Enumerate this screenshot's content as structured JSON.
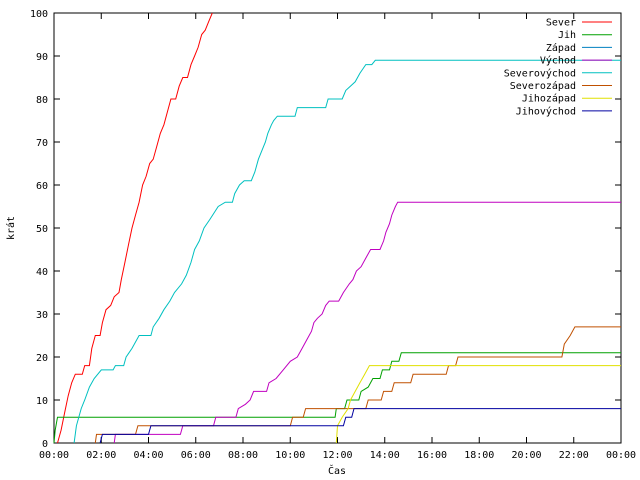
{
  "chart_data": {
    "type": "line",
    "title": "",
    "xlabel": "Čas",
    "ylabel": "krát",
    "xlim": [
      0,
      24
    ],
    "ylim": [
      0,
      100
    ],
    "legend_position": "top-right",
    "grid": false,
    "x_tick_labels": [
      "00:00",
      "02:00",
      "04:00",
      "06:00",
      "08:00",
      "10:00",
      "12:00",
      "14:00",
      "16:00",
      "18:00",
      "20:00",
      "22:00",
      "00:00"
    ],
    "y_tick_labels": [
      "0",
      "10",
      "20",
      "30",
      "40",
      "50",
      "60",
      "70",
      "80",
      "90",
      "100"
    ],
    "series": [
      {
        "name": "Sever",
        "color": "#ff0000",
        "points": [
          [
            0.15,
            0
          ],
          [
            0.3,
            3
          ],
          [
            0.45,
            7
          ],
          [
            0.6,
            11
          ],
          [
            0.75,
            14
          ],
          [
            0.9,
            16
          ],
          [
            1.2,
            16
          ],
          [
            1.3,
            18
          ],
          [
            1.5,
            18
          ],
          [
            1.6,
            22
          ],
          [
            1.75,
            25
          ],
          [
            1.95,
            25
          ],
          [
            2.05,
            28
          ],
          [
            2.2,
            31
          ],
          [
            2.4,
            32
          ],
          [
            2.55,
            34
          ],
          [
            2.75,
            35
          ],
          [
            2.85,
            38
          ],
          [
            3.0,
            42
          ],
          [
            3.15,
            46
          ],
          [
            3.3,
            50
          ],
          [
            3.45,
            53
          ],
          [
            3.6,
            56
          ],
          [
            3.75,
            60
          ],
          [
            3.9,
            62
          ],
          [
            4.05,
            65
          ],
          [
            4.2,
            66
          ],
          [
            4.35,
            69
          ],
          [
            4.5,
            72
          ],
          [
            4.65,
            74
          ],
          [
            4.8,
            77
          ],
          [
            4.95,
            80
          ],
          [
            5.15,
            80
          ],
          [
            5.3,
            83
          ],
          [
            5.45,
            85
          ],
          [
            5.65,
            85
          ],
          [
            5.8,
            88
          ],
          [
            5.95,
            90
          ],
          [
            6.1,
            92
          ],
          [
            6.25,
            95
          ],
          [
            6.4,
            96
          ],
          [
            6.55,
            98
          ],
          [
            6.7,
            100
          ]
        ]
      },
      {
        "name": "Jih",
        "color": "#00a000",
        "points": [
          [
            0,
            0
          ],
          [
            0.05,
            3
          ],
          [
            0.15,
            6
          ],
          [
            11.9,
            6
          ],
          [
            11.95,
            8
          ],
          [
            12.3,
            8
          ],
          [
            12.4,
            10
          ],
          [
            12.9,
            10
          ],
          [
            13.0,
            12
          ],
          [
            13.3,
            13
          ],
          [
            13.5,
            15
          ],
          [
            13.8,
            15
          ],
          [
            13.9,
            17
          ],
          [
            14.2,
            17
          ],
          [
            14.3,
            19
          ],
          [
            14.6,
            19
          ],
          [
            14.7,
            21
          ],
          [
            24,
            21
          ]
        ]
      },
      {
        "name": "Západ",
        "color": "#0080c0",
        "points": []
      },
      {
        "name": "Východ",
        "color": "#c000c0",
        "points": [
          [
            2.55,
            0
          ],
          [
            2.6,
            2
          ],
          [
            5.35,
            2
          ],
          [
            5.45,
            4
          ],
          [
            6.75,
            4
          ],
          [
            6.85,
            6
          ],
          [
            7.7,
            6
          ],
          [
            7.8,
            8
          ],
          [
            8.1,
            9
          ],
          [
            8.3,
            10
          ],
          [
            8.45,
            12
          ],
          [
            9.0,
            12
          ],
          [
            9.1,
            14
          ],
          [
            9.4,
            15
          ],
          [
            9.7,
            17
          ],
          [
            10.0,
            19
          ],
          [
            10.3,
            20
          ],
          [
            10.5,
            22
          ],
          [
            10.7,
            24
          ],
          [
            10.9,
            26
          ],
          [
            11.0,
            28
          ],
          [
            11.15,
            29
          ],
          [
            11.35,
            30
          ],
          [
            11.5,
            32
          ],
          [
            11.65,
            33
          ],
          [
            12.05,
            33
          ],
          [
            12.25,
            35
          ],
          [
            12.5,
            37
          ],
          [
            12.65,
            38
          ],
          [
            12.8,
            40
          ],
          [
            13.0,
            41
          ],
          [
            13.2,
            43
          ],
          [
            13.4,
            45
          ],
          [
            13.8,
            45
          ],
          [
            13.95,
            47
          ],
          [
            14.05,
            49
          ],
          [
            14.2,
            51
          ],
          [
            14.3,
            53
          ],
          [
            14.45,
            55
          ],
          [
            14.55,
            56
          ],
          [
            24,
            56
          ]
        ]
      },
      {
        "name": "Severovýchod",
        "color": "#00c0c0",
        "points": [
          [
            0.85,
            0
          ],
          [
            0.95,
            4
          ],
          [
            1.15,
            8
          ],
          [
            1.3,
            10
          ],
          [
            1.5,
            13
          ],
          [
            1.7,
            15
          ],
          [
            2.0,
            17
          ],
          [
            2.5,
            17
          ],
          [
            2.6,
            18
          ],
          [
            2.95,
            18
          ],
          [
            3.05,
            20
          ],
          [
            3.3,
            22
          ],
          [
            3.6,
            25
          ],
          [
            4.1,
            25
          ],
          [
            4.2,
            27
          ],
          [
            4.45,
            29
          ],
          [
            4.65,
            31
          ],
          [
            4.9,
            33
          ],
          [
            5.1,
            35
          ],
          [
            5.4,
            37
          ],
          [
            5.6,
            39
          ],
          [
            5.8,
            42
          ],
          [
            5.95,
            45
          ],
          [
            6.15,
            47
          ],
          [
            6.35,
            50
          ],
          [
            6.6,
            52
          ],
          [
            6.95,
            55
          ],
          [
            7.25,
            56
          ],
          [
            7.55,
            56
          ],
          [
            7.65,
            58
          ],
          [
            7.85,
            60
          ],
          [
            8.05,
            61
          ],
          [
            8.35,
            61
          ],
          [
            8.5,
            63
          ],
          [
            8.65,
            66
          ],
          [
            8.8,
            68
          ],
          [
            8.95,
            70
          ],
          [
            9.05,
            72
          ],
          [
            9.2,
            74
          ],
          [
            9.3,
            75
          ],
          [
            9.45,
            76
          ],
          [
            10.2,
            76
          ],
          [
            10.3,
            78
          ],
          [
            11.5,
            78
          ],
          [
            11.6,
            80
          ],
          [
            12.2,
            80
          ],
          [
            12.35,
            82
          ],
          [
            12.55,
            83
          ],
          [
            12.75,
            84
          ],
          [
            12.95,
            86
          ],
          [
            13.2,
            88
          ],
          [
            13.45,
            88
          ],
          [
            13.6,
            89
          ],
          [
            24,
            89
          ]
        ]
      },
      {
        "name": "Severozápad",
        "color": "#c05000",
        "points": [
          [
            1.75,
            0
          ],
          [
            1.8,
            2
          ],
          [
            3.45,
            2
          ],
          [
            3.55,
            4
          ],
          [
            10.0,
            4
          ],
          [
            10.1,
            6
          ],
          [
            10.55,
            6
          ],
          [
            10.65,
            8
          ],
          [
            13.2,
            8
          ],
          [
            13.3,
            10
          ],
          [
            13.85,
            10
          ],
          [
            13.95,
            12
          ],
          [
            14.3,
            12
          ],
          [
            14.4,
            14
          ],
          [
            15.1,
            14
          ],
          [
            15.2,
            16
          ],
          [
            16.6,
            16
          ],
          [
            16.7,
            18
          ],
          [
            17.0,
            18
          ],
          [
            17.1,
            20
          ],
          [
            21.5,
            20
          ],
          [
            21.6,
            23
          ],
          [
            21.85,
            25
          ],
          [
            22.05,
            27
          ],
          [
            24,
            27
          ]
        ]
      },
      {
        "name": "Jihozápad",
        "color": "#e0e000",
        "points": [
          [
            11.95,
            0
          ],
          [
            12.0,
            4
          ],
          [
            12.2,
            6
          ],
          [
            12.45,
            8
          ],
          [
            12.55,
            10
          ],
          [
            12.75,
            12
          ],
          [
            12.95,
            14
          ],
          [
            13.15,
            16
          ],
          [
            13.35,
            18
          ],
          [
            15.2,
            18
          ],
          [
            24,
            18
          ]
        ]
      },
      {
        "name": "Jihovýchod",
        "color": "#0000a0",
        "points": [
          [
            1.95,
            0
          ],
          [
            2.05,
            2
          ],
          [
            4.0,
            2
          ],
          [
            4.1,
            4
          ],
          [
            12.25,
            4
          ],
          [
            12.35,
            6
          ],
          [
            12.6,
            6
          ],
          [
            12.7,
            8
          ],
          [
            24,
            8
          ]
        ]
      }
    ]
  }
}
